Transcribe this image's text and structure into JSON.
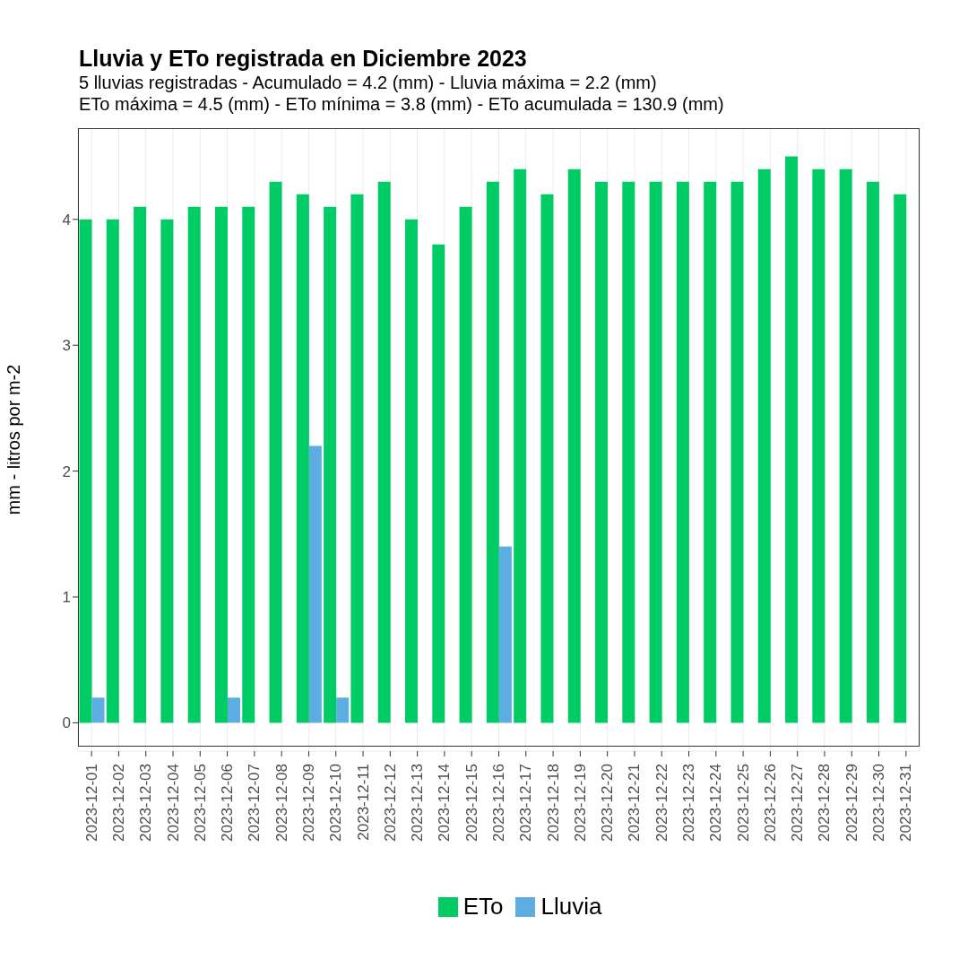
{
  "chart_data": {
    "type": "bar",
    "title": "Lluvia y ETo registrada en Diciembre 2023",
    "subtitle": "5 lluvias registradas - Acumulado = 4.2 (mm) - Lluvia máxima = 2.2 (mm)\nETo máxima = 4.5 (mm) - ETo mínima = 3.8 (mm) - ETo acumulada = 130.9 (mm)",
    "ylabel": "mm - litros por m-2",
    "categories": [
      "2023-12-01",
      "2023-12-02",
      "2023-12-03",
      "2023-12-04",
      "2023-12-05",
      "2023-12-06",
      "2023-12-07",
      "2023-12-08",
      "2023-12-09",
      "2023-12-10",
      "2023-12-11",
      "2023-12-12",
      "2023-12-13",
      "2023-12-14",
      "2023-12-15",
      "2023-12-16",
      "2023-12-17",
      "2023-12-18",
      "2023-12-19",
      "2023-12-20",
      "2023-12-21",
      "2023-12-22",
      "2023-12-23",
      "2023-12-24",
      "2023-12-25",
      "2023-12-26",
      "2023-12-27",
      "2023-12-28",
      "2023-12-29",
      "2023-12-30",
      "2023-12-31"
    ],
    "series": [
      {
        "name": "ETo",
        "color": "#00cc66",
        "values": [
          4.0,
          4.0,
          4.1,
          4.0,
          4.1,
          4.1,
          4.1,
          4.3,
          4.2,
          4.1,
          4.2,
          4.3,
          4.0,
          3.8,
          4.1,
          4.3,
          4.4,
          4.2,
          4.4,
          4.3,
          4.3,
          4.3,
          4.3,
          4.3,
          4.3,
          4.4,
          4.5,
          4.4,
          4.4,
          4.3,
          4.2
        ]
      },
      {
        "name": "Lluvia",
        "color": "#5dade2",
        "values": [
          0.2,
          0,
          0,
          0,
          0,
          0.2,
          0,
          0,
          2.2,
          0.2,
          0,
          0,
          0,
          0,
          0,
          1.4,
          0,
          0,
          0,
          0,
          0,
          0,
          0,
          0,
          0,
          0,
          0,
          0,
          0,
          0,
          0
        ]
      }
    ],
    "ylim": [
      -0.225,
      4.725
    ],
    "yticks": [
      0,
      1,
      2,
      3,
      4
    ],
    "grid": true,
    "legend": "bottom"
  }
}
